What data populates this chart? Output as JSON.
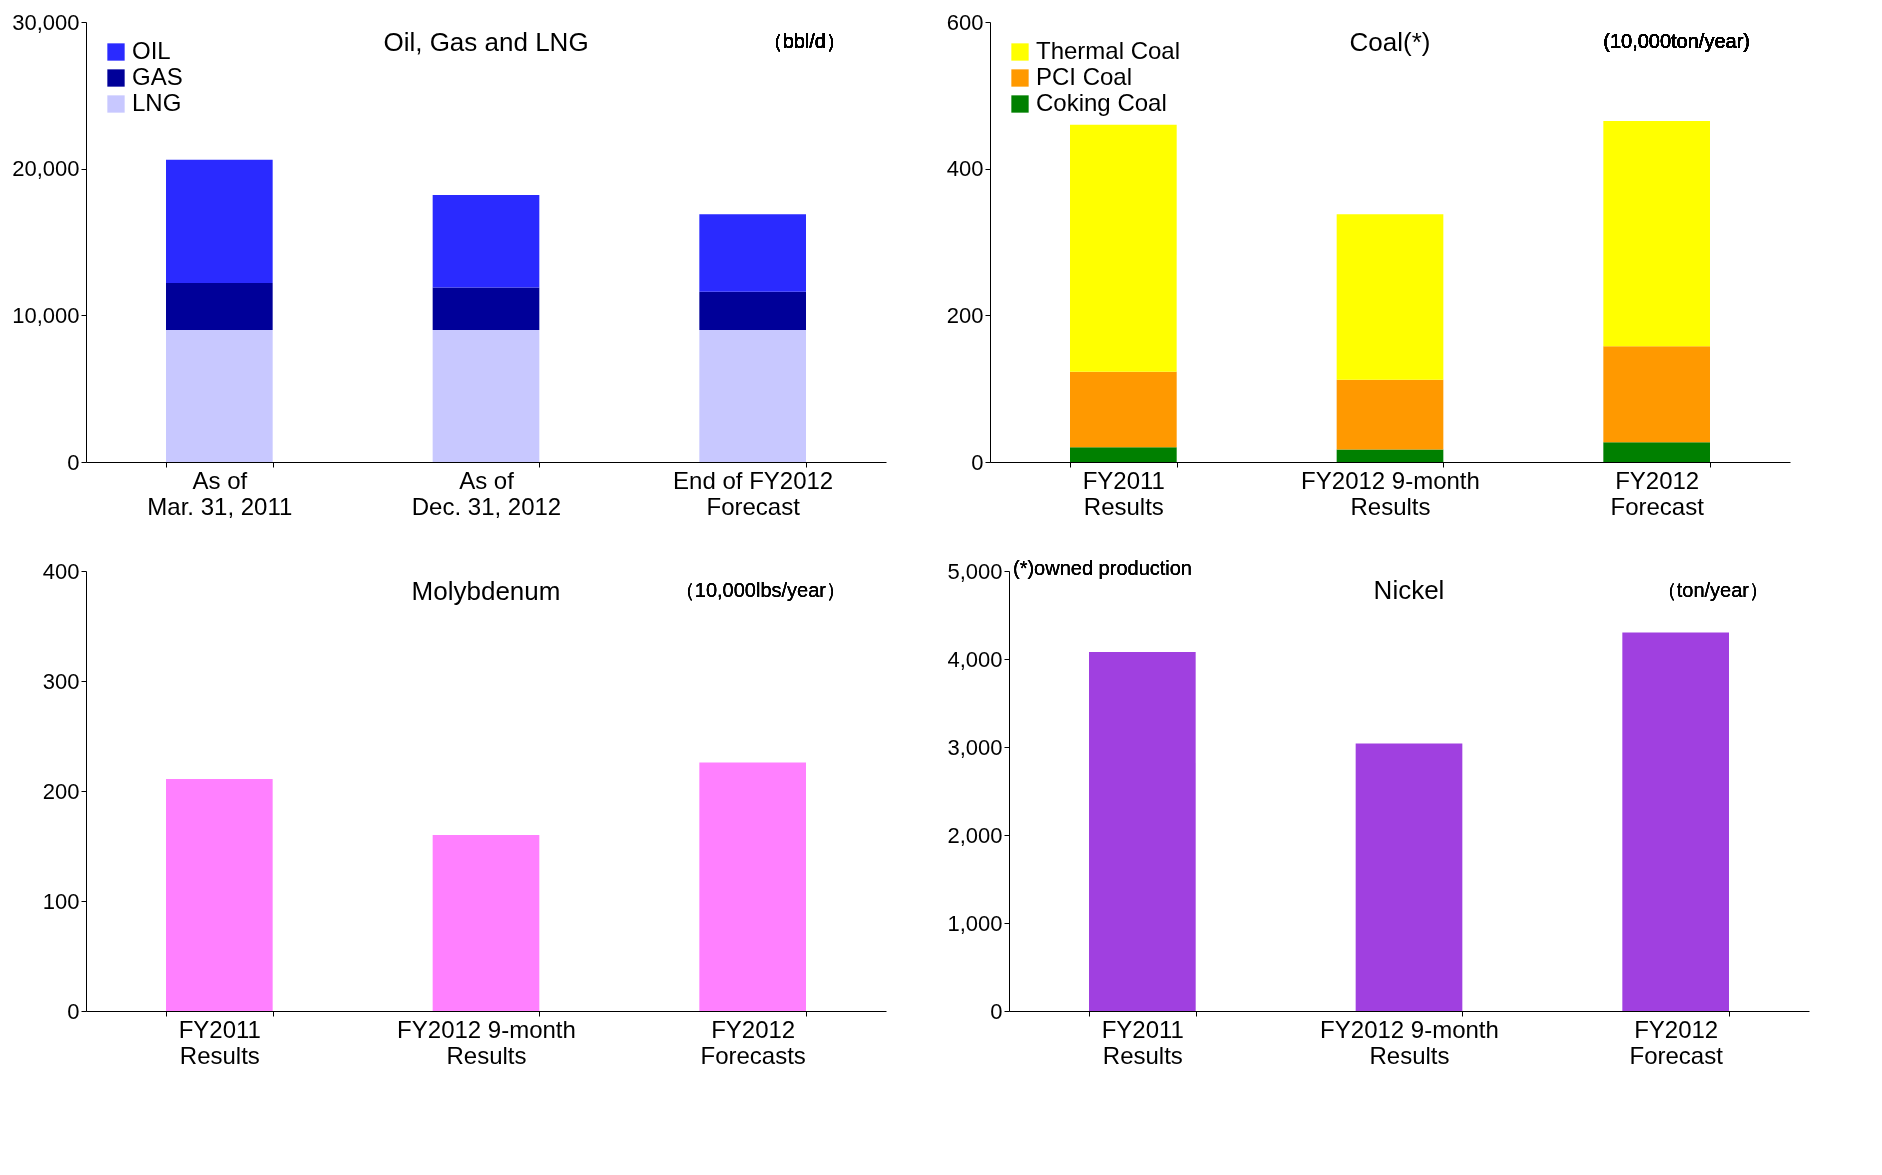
{
  "chart_data": [
    {
      "type": "bar",
      "title": "Oil, Gas and LNG",
      "annotations": [
        "（bbl/d）"
      ],
      "categories": [
        "As of\nMar. 31, 2011",
        "As of\nDec. 31, 2012",
        "End of FY2012\nForecast"
      ],
      "stacked": true,
      "legend": "top left",
      "series": [
        {
          "name": "LNG",
          "color": "#c8c8ff",
          "values": [
            9000,
            9000,
            9000
          ]
        },
        {
          "name": "GAS",
          "color": "#000099",
          "values": [
            3200,
            2900,
            2600
          ]
        },
        {
          "name": "OIL",
          "color": "#2a2aff",
          "values": [
            8400,
            6300,
            5300
          ]
        }
      ],
      "ylim": [
        0,
        30000
      ],
      "yticks": [
        0,
        {
          "value": 10000,
          "label": "10,000"
        },
        {
          "value": 20000,
          "label": "20,000"
        },
        {
          "value": 30000,
          "label": "30,000"
        }
      ],
      "grid": false
    },
    {
      "type": "bar",
      "title": "Coal(*)",
      "annotations": [
        "(10,000ton/year)"
      ],
      "categories": [
        "FY2011\nResults",
        "FY2012 9-month\nResults",
        "FY2012\nForecast"
      ],
      "stacked": true,
      "legend": "top left",
      "series": [
        {
          "name": "Coking Coal",
          "color": "#008000",
          "values": [
            20,
            17,
            27
          ]
        },
        {
          "name": "PCI Coal",
          "color": "#ff9900",
          "values": [
            103,
            95,
            131
          ]
        },
        {
          "name": "Thermal Coal",
          "color": "#ffff00",
          "values": [
            337,
            226,
            307
          ]
        }
      ],
      "ylim": [
        0,
        600
      ],
      "yticks": [
        0,
        200,
        400,
        600
      ],
      "grid": false
    },
    {
      "type": "bar",
      "title": "Molybdenum",
      "annotations": [
        "（10,000lbs/year）"
      ],
      "categories": [
        "FY2011\nResults",
        "FY2012 9-month\nResults",
        "FY2012\nForecasts"
      ],
      "color": "#ff80ff",
      "values": [
        211,
        160,
        226
      ],
      "ylim": [
        0,
        400
      ],
      "yticks": [
        0,
        100,
        200,
        300,
        400
      ],
      "grid": false
    },
    {
      "type": "bar",
      "title": "Nickel",
      "annotations": [
        "（ton/year）",
        "(*)owned production"
      ],
      "categories": [
        "FY2011\nResults",
        "FY2012 9-month\nResults",
        "FY2012\nForecast"
      ],
      "color": "#a040e0",
      "values": [
        4080,
        3040,
        4300
      ],
      "ylim": [
        0,
        5000
      ],
      "yticks": [
        0,
        {
          "value": 1000,
          "label": "1,000"
        },
        {
          "value": 2000,
          "label": "2,000"
        },
        {
          "value": 3000,
          "label": "3,000"
        },
        {
          "value": 4000,
          "label": "4,000"
        },
        {
          "value": 5000,
          "label": "5,000"
        }
      ],
      "grid": false
    }
  ]
}
